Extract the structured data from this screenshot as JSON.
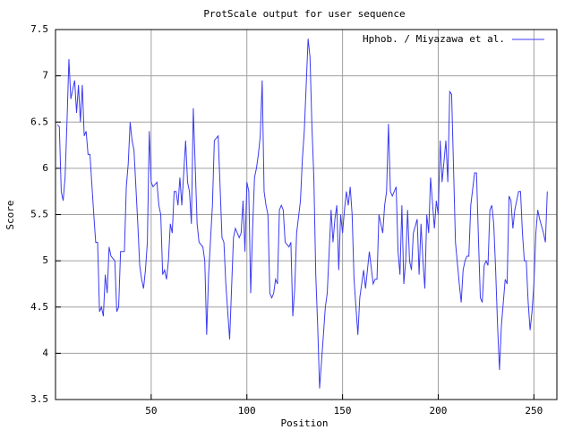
{
  "chart_data": {
    "type": "line",
    "title": "ProtScale output for user sequence",
    "x_label": "Position",
    "y_label": "Score",
    "xlim": [
      0,
      262
    ],
    "ylim": [
      3.5,
      7.5
    ],
    "xticks": [
      50,
      100,
      150,
      200,
      250
    ],
    "yticks": [
      3.5,
      4,
      4.5,
      5,
      5.5,
      6,
      6.5,
      7,
      7.5
    ],
    "grid": true,
    "legend": "top-right",
    "x": [
      1,
      2,
      3,
      4,
      5,
      6,
      7,
      8,
      10,
      11,
      12,
      13,
      14,
      15,
      16,
      17,
      18,
      20,
      21,
      22,
      23,
      24,
      25,
      26,
      27,
      28,
      29,
      31,
      32,
      33,
      34,
      36,
      37,
      38,
      39,
      40,
      41,
      43,
      44,
      45,
      46,
      47,
      48,
      49,
      50,
      51,
      53,
      54,
      55,
      56,
      57,
      58,
      59,
      60,
      61,
      62,
      63,
      64,
      65,
      66,
      68,
      69,
      70,
      71,
      72,
      74,
      75,
      77,
      78,
      79,
      80,
      82,
      83,
      85,
      86,
      87,
      88,
      89,
      91,
      92,
      93,
      94,
      96,
      97,
      98,
      99,
      100,
      101,
      102,
      103,
      104,
      105,
      106,
      107,
      108,
      109,
      110,
      111,
      112,
      113,
      114,
      115,
      116,
      117,
      118,
      119,
      120,
      122,
      123,
      124,
      125,
      126,
      128,
      129,
      130,
      131,
      132,
      133,
      134,
      135,
      136,
      137,
      138,
      140,
      141,
      142,
      144,
      145,
      146,
      147,
      148,
      149,
      150,
      151,
      152,
      153,
      154,
      155,
      156,
      157,
      158,
      159,
      161,
      162,
      163,
      164,
      166,
      167,
      168,
      169,
      171,
      172,
      173,
      174,
      175,
      176,
      178,
      179,
      180,
      181,
      182,
      183,
      184,
      185,
      186,
      187,
      189,
      190,
      191,
      192,
      193,
      194,
      195,
      196,
      198,
      199,
      200,
      201,
      202,
      204,
      205,
      206,
      207,
      208,
      209,
      211,
      212,
      213,
      214,
      215,
      216,
      217,
      219,
      220,
      221,
      222,
      223,
      224,
      225,
      226,
      227,
      228,
      229,
      230,
      231,
      232,
      233,
      234,
      235,
      236,
      237,
      238,
      239,
      240,
      242,
      243,
      244,
      245,
      246,
      247,
      248,
      249,
      250,
      251,
      252,
      253,
      255,
      256,
      257
    ],
    "series": [
      {
        "name": "Hphob. / Miyazawa et al.",
        "color": "#3b3bf0",
        "values": [
          6.47,
          6.45,
          5.75,
          5.65,
          5.9,
          6.5,
          7.18,
          6.75,
          6.95,
          6.6,
          6.9,
          6.5,
          6.9,
          6.35,
          6.4,
          6.15,
          6.15,
          5.5,
          5.2,
          5.2,
          4.45,
          4.5,
          4.4,
          4.85,
          4.65,
          5.15,
          5.05,
          5.0,
          4.45,
          4.5,
          5.1,
          5.1,
          5.8,
          6.05,
          6.5,
          6.3,
          6.2,
          5.4,
          4.95,
          4.8,
          4.7,
          4.9,
          5.2,
          6.4,
          5.85,
          5.8,
          5.85,
          5.6,
          5.5,
          4.85,
          4.9,
          4.8,
          5.0,
          5.4,
          5.3,
          5.75,
          5.75,
          5.6,
          5.9,
          5.6,
          6.3,
          5.85,
          5.75,
          5.4,
          6.65,
          5.4,
          5.2,
          5.15,
          5.0,
          4.2,
          4.85,
          5.6,
          6.3,
          6.35,
          5.8,
          5.25,
          5.2,
          4.75,
          4.15,
          4.7,
          5.25,
          5.35,
          5.25,
          5.3,
          5.65,
          5.1,
          5.85,
          5.75,
          4.65,
          5.35,
          5.9,
          6.0,
          6.15,
          6.35,
          6.95,
          5.75,
          5.6,
          5.5,
          4.65,
          4.6,
          4.65,
          4.8,
          4.75,
          5.55,
          5.6,
          5.55,
          5.2,
          5.15,
          5.2,
          4.4,
          4.7,
          5.3,
          5.65,
          6.1,
          6.4,
          6.9,
          7.4,
          7.2,
          6.45,
          5.9,
          4.85,
          4.3,
          3.62,
          4.2,
          4.5,
          4.65,
          5.55,
          5.2,
          5.45,
          5.6,
          4.9,
          5.5,
          5.3,
          5.55,
          5.75,
          5.6,
          5.8,
          5.5,
          4.8,
          4.5,
          4.2,
          4.6,
          4.9,
          4.7,
          4.9,
          5.1,
          4.75,
          4.8,
          4.8,
          5.5,
          5.3,
          5.6,
          5.75,
          6.48,
          5.75,
          5.7,
          5.8,
          5.1,
          4.85,
          5.6,
          4.75,
          5.0,
          5.55,
          5.0,
          4.9,
          5.3,
          5.45,
          4.85,
          5.4,
          5.0,
          4.7,
          5.5,
          5.3,
          5.9,
          5.35,
          5.65,
          5.5,
          6.3,
          5.85,
          6.3,
          5.85,
          6.83,
          6.8,
          6.0,
          5.2,
          4.75,
          4.55,
          4.9,
          5.0,
          5.05,
          5.05,
          5.6,
          5.95,
          5.95,
          5.25,
          4.6,
          4.55,
          4.95,
          5.0,
          4.95,
          5.55,
          5.6,
          5.4,
          4.9,
          4.3,
          3.82,
          4.3,
          4.55,
          4.8,
          4.75,
          5.7,
          5.65,
          5.35,
          5.55,
          5.75,
          5.75,
          5.3,
          5.0,
          5.0,
          4.55,
          4.25,
          4.45,
          4.75,
          5.3,
          5.55,
          5.45,
          5.3,
          5.2,
          5.75
        ]
      }
    ]
  }
}
